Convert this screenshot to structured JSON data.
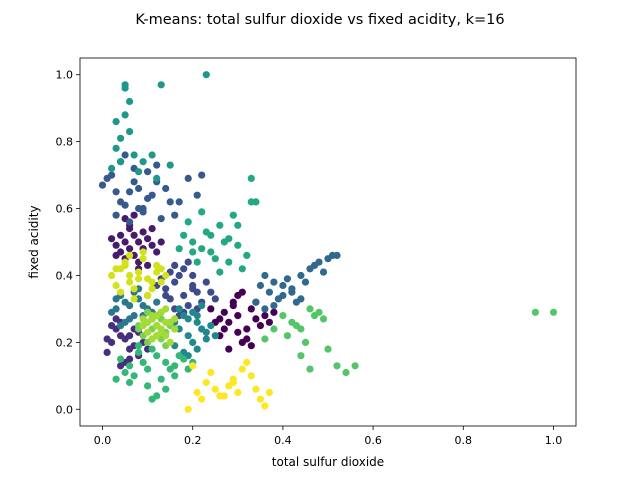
{
  "chart_data": {
    "type": "scatter",
    "title": "K-means: total sulfur dioxide vs fixed acidity, k=16",
    "xlabel": "total sulfur dioxide",
    "ylabel": "fixed acidity",
    "xlim": [
      -0.05,
      1.05
    ],
    "ylim": [
      -0.05,
      1.05
    ],
    "xticks": [
      0.0,
      0.2,
      0.4,
      0.6,
      0.8,
      1.0
    ],
    "yticks": [
      0.0,
      0.2,
      0.4,
      0.6,
      0.8,
      1.0
    ],
    "xtick_labels": [
      "0.0",
      "0.2",
      "0.4",
      "0.6",
      "0.8",
      "1.0"
    ],
    "ytick_labels": [
      "0.0",
      "0.2",
      "0.4",
      "0.6",
      "0.8",
      "1.0"
    ],
    "grid": false,
    "legend": "none",
    "colormap": "viridis",
    "series": [
      {
        "color": "#440154",
        "x": [
          0.28,
          0.3,
          0.32,
          0.26,
          0.34,
          0.29,
          0.31,
          0.27,
          0.33,
          0.35,
          0.25,
          0.3,
          0.36,
          0.28,
          0.32,
          0.24,
          0.3,
          0.37,
          0.29,
          0.26,
          0.31,
          0.33,
          0.38,
          0.27,
          0.34
        ],
        "y": [
          0.26,
          0.28,
          0.24,
          0.22,
          0.27,
          0.31,
          0.2,
          0.29,
          0.3,
          0.25,
          0.26,
          0.23,
          0.28,
          0.18,
          0.21,
          0.3,
          0.34,
          0.26,
          0.32,
          0.27,
          0.35,
          0.19,
          0.29,
          0.24,
          0.32
        ]
      },
      {
        "color": "#481a6c",
        "x": [
          0.05,
          0.07,
          0.09,
          0.04,
          0.06,
          0.08,
          0.1,
          0.03,
          0.05,
          0.07,
          0.09,
          0.11,
          0.04,
          0.06,
          0.08,
          0.02,
          0.12,
          0.05,
          0.1,
          0.07,
          0.13,
          0.03,
          0.08,
          0.06,
          0.11
        ],
        "y": [
          0.5,
          0.52,
          0.48,
          0.47,
          0.54,
          0.5,
          0.51,
          0.49,
          0.45,
          0.46,
          0.53,
          0.49,
          0.52,
          0.55,
          0.44,
          0.51,
          0.47,
          0.57,
          0.43,
          0.58,
          0.5,
          0.46,
          0.42,
          0.48,
          0.54
        ]
      },
      {
        "color": "#472f7d",
        "x": [
          0.02,
          0.04,
          0.06,
          0.03,
          0.05,
          0.07,
          0.01,
          0.08,
          0.04,
          0.06,
          0.02,
          0.09,
          0.05,
          0.03,
          0.07,
          0.1,
          0.04,
          0.06,
          0.01,
          0.08
        ],
        "y": [
          0.2,
          0.22,
          0.18,
          0.24,
          0.21,
          0.19,
          0.17,
          0.23,
          0.26,
          0.15,
          0.25,
          0.2,
          0.14,
          0.27,
          0.24,
          0.18,
          0.13,
          0.22,
          0.21,
          0.16
        ]
      },
      {
        "color": "#3e4a89",
        "x": [
          0.14,
          0.16,
          0.18,
          0.2,
          0.15,
          0.17,
          0.19,
          0.21,
          0.13,
          0.22,
          0.16,
          0.18,
          0.2,
          0.14,
          0.23,
          0.19,
          0.17,
          0.15,
          0.21,
          0.24,
          0.12,
          0.18,
          0.25,
          0.16,
          0.2
        ],
        "y": [
          0.36,
          0.38,
          0.34,
          0.37,
          0.33,
          0.4,
          0.31,
          0.35,
          0.39,
          0.32,
          0.3,
          0.42,
          0.36,
          0.34,
          0.38,
          0.44,
          0.28,
          0.41,
          0.3,
          0.35,
          0.37,
          0.29,
          0.33,
          0.43,
          0.4
        ]
      },
      {
        "color": "#375a8c",
        "x": [
          0.0,
          0.02,
          0.04,
          0.06,
          0.08,
          0.1,
          0.12,
          0.14,
          0.03,
          0.05,
          0.07,
          0.09,
          0.11,
          0.13,
          0.15,
          0.01,
          0.04,
          0.06,
          0.08,
          0.1,
          0.17,
          0.19,
          0.21,
          0.22,
          0.05,
          0.07,
          0.09,
          0.03,
          0.12,
          0.16
        ],
        "y": [
          0.67,
          0.7,
          0.62,
          0.65,
          0.6,
          0.63,
          0.68,
          0.66,
          0.58,
          0.61,
          0.72,
          0.59,
          0.64,
          0.57,
          0.62,
          0.69,
          0.74,
          0.56,
          0.66,
          0.71,
          0.62,
          0.69,
          0.64,
          0.7,
          0.76,
          0.68,
          0.6,
          0.65,
          0.73,
          0.58
        ]
      },
      {
        "color": "#31688e",
        "x": [
          0.36,
          0.38,
          0.4,
          0.42,
          0.44,
          0.46,
          0.48,
          0.5,
          0.52,
          0.37,
          0.39,
          0.41,
          0.43,
          0.45,
          0.47,
          0.49,
          0.51,
          0.35,
          0.4,
          0.34,
          0.38,
          0.44,
          0.42,
          0.36
        ],
        "y": [
          0.4,
          0.38,
          0.37,
          0.36,
          0.4,
          0.42,
          0.44,
          0.45,
          0.46,
          0.35,
          0.33,
          0.39,
          0.32,
          0.38,
          0.43,
          0.41,
          0.46,
          0.37,
          0.34,
          0.32,
          0.31,
          0.33,
          0.35,
          0.3
        ]
      },
      {
        "color": "#2a788e",
        "x": [
          0.03,
          0.05,
          0.07,
          0.09,
          0.11,
          0.04,
          0.06,
          0.08,
          0.1,
          0.02,
          0.12,
          0.05,
          0.07,
          0.09,
          0.03,
          0.11,
          0.06,
          0.08,
          0.04,
          0.1
        ],
        "y": [
          0.3,
          0.32,
          0.28,
          0.31,
          0.29,
          0.34,
          0.27,
          0.33,
          0.3,
          0.29,
          0.32,
          0.26,
          0.35,
          0.28,
          0.33,
          0.27,
          0.31,
          0.36,
          0.25,
          0.34
        ]
      },
      {
        "color": "#23888e",
        "x": [
          0.17,
          0.19,
          0.21,
          0.23,
          0.18,
          0.2,
          0.22,
          0.16,
          0.24,
          0.19,
          0.21,
          0.17,
          0.23,
          0.2,
          0.18,
          0.25,
          0.22,
          0.16,
          0.19,
          0.21
        ],
        "y": [
          0.24,
          0.22,
          0.26,
          0.21,
          0.28,
          0.2,
          0.24,
          0.19,
          0.25,
          0.27,
          0.18,
          0.3,
          0.23,
          0.29,
          0.17,
          0.22,
          0.31,
          0.26,
          0.16,
          0.28
        ]
      },
      {
        "color": "#1f988b",
        "x": [
          0.05,
          0.05,
          0.06,
          0.03,
          0.04,
          0.03,
          0.04,
          0.07,
          0.13,
          0.11,
          0.23,
          0.05,
          0.08,
          0.06,
          0.02,
          0.15,
          0.09,
          0.12
        ],
        "y": [
          0.97,
          0.96,
          0.92,
          0.86,
          0.81,
          0.78,
          0.74,
          0.76,
          0.97,
          0.76,
          1.0,
          0.88,
          0.71,
          0.83,
          0.72,
          0.73,
          0.74,
          0.69
        ]
      },
      {
        "color": "#22a884",
        "x": [
          0.18,
          0.2,
          0.22,
          0.24,
          0.26,
          0.28,
          0.3,
          0.32,
          0.19,
          0.21,
          0.23,
          0.25,
          0.27,
          0.29,
          0.31,
          0.33,
          0.17,
          0.22,
          0.26,
          0.3,
          0.33,
          0.34,
          0.28,
          0.24,
          0.2
        ],
        "y": [
          0.52,
          0.5,
          0.48,
          0.47,
          0.55,
          0.51,
          0.49,
          0.46,
          0.56,
          0.44,
          0.53,
          0.45,
          0.5,
          0.58,
          0.42,
          0.62,
          0.48,
          0.59,
          0.41,
          0.55,
          0.69,
          0.62,
          0.44,
          0.52,
          0.47
        ]
      },
      {
        "color": "#35b779",
        "x": [
          0.04,
          0.06,
          0.08,
          0.1,
          0.12,
          0.14,
          0.16,
          0.18,
          0.05,
          0.07,
          0.09,
          0.11,
          0.13,
          0.15,
          0.17,
          0.06,
          0.1,
          0.14,
          0.19,
          0.08,
          0.12,
          0.16,
          0.2,
          0.03,
          0.11
        ],
        "y": [
          0.15,
          0.13,
          0.17,
          0.12,
          0.16,
          0.14,
          0.13,
          0.15,
          0.11,
          0.1,
          0.14,
          0.18,
          0.09,
          0.12,
          0.16,
          0.08,
          0.07,
          0.06,
          0.12,
          0.19,
          0.04,
          0.1,
          0.14,
          0.09,
          0.03
        ]
      },
      {
        "color": "#54c568",
        "x": [
          0.4,
          0.42,
          0.44,
          0.46,
          0.48,
          0.5,
          0.41,
          0.43,
          0.45,
          0.47,
          0.49,
          0.38,
          0.52,
          0.54,
          0.56,
          0.44,
          0.46,
          0.96,
          1.0,
          0.36
        ],
        "y": [
          0.28,
          0.26,
          0.24,
          0.3,
          0.29,
          0.18,
          0.22,
          0.25,
          0.2,
          0.28,
          0.27,
          0.24,
          0.13,
          0.11,
          0.13,
          0.16,
          0.12,
          0.29,
          0.29,
          0.21
        ]
      },
      {
        "color": "#7ad151",
        "x": [
          0.08,
          0.1,
          0.12,
          0.14,
          0.09,
          0.11,
          0.13,
          0.15,
          0.1,
          0.12,
          0.08,
          0.14,
          0.11,
          0.13,
          0.09,
          0.12,
          0.1,
          0.15,
          0.11,
          0.13
        ],
        "y": [
          0.24,
          0.26,
          0.25,
          0.23,
          0.22,
          0.27,
          0.21,
          0.26,
          0.2,
          0.28,
          0.25,
          0.19,
          0.24,
          0.29,
          0.27,
          0.22,
          0.29,
          0.25,
          0.21,
          0.27
        ]
      },
      {
        "color": "#a5db36",
        "x": [
          0.09,
          0.11,
          0.13,
          0.15,
          0.1,
          0.12,
          0.14,
          0.16,
          0.11,
          0.13,
          0.1,
          0.15,
          0.12,
          0.14,
          0.11,
          0.13,
          0.09,
          0.16,
          0.12,
          0.14
        ],
        "y": [
          0.25,
          0.27,
          0.24,
          0.26,
          0.23,
          0.28,
          0.22,
          0.27,
          0.21,
          0.29,
          0.26,
          0.2,
          0.25,
          0.3,
          0.28,
          0.23,
          0.27,
          0.24,
          0.22,
          0.26
        ]
      },
      {
        "color": "#d2e21b",
        "x": [
          0.02,
          0.04,
          0.06,
          0.08,
          0.1,
          0.12,
          0.14,
          0.03,
          0.05,
          0.07,
          0.09,
          0.11,
          0.13,
          0.04,
          0.06,
          0.08,
          0.1,
          0.12,
          0.05,
          0.09,
          0.07,
          0.11,
          0.03,
          0.13,
          0.06
        ],
        "y": [
          0.4,
          0.42,
          0.38,
          0.41,
          0.39,
          0.43,
          0.4,
          0.37,
          0.44,
          0.36,
          0.45,
          0.38,
          0.42,
          0.35,
          0.46,
          0.39,
          0.34,
          0.41,
          0.43,
          0.47,
          0.33,
          0.36,
          0.42,
          0.38,
          0.4
        ]
      },
      {
        "color": "#fde725",
        "x": [
          0.19,
          0.21,
          0.23,
          0.25,
          0.27,
          0.29,
          0.31,
          0.33,
          0.35,
          0.37,
          0.2,
          0.24,
          0.28,
          0.3,
          0.32,
          0.34,
          0.36,
          0.26,
          0.22,
          0.29
        ],
        "y": [
          0.0,
          0.05,
          0.08,
          0.06,
          0.04,
          0.09,
          0.12,
          0.1,
          0.03,
          0.05,
          0.13,
          0.11,
          0.07,
          0.05,
          0.14,
          0.06,
          0.01,
          0.04,
          0.03,
          0.08
        ]
      }
    ]
  }
}
